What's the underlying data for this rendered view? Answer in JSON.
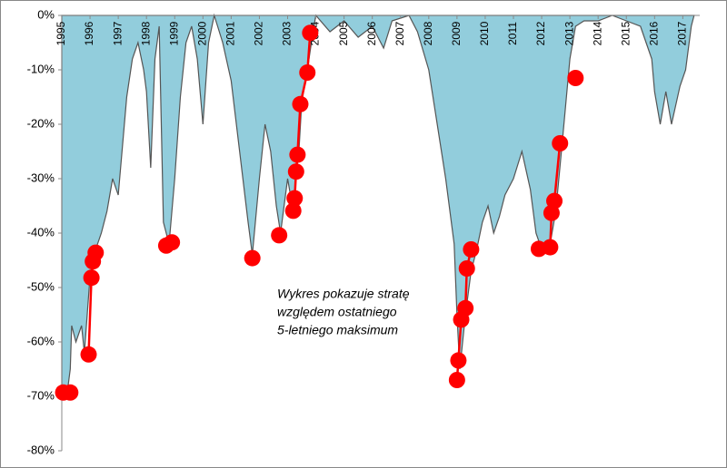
{
  "chart_data": {
    "type": "area",
    "annotation": [
      "Wykres pokazuje stratę",
      "względem ostatniego",
      "5-letniego maksimum"
    ],
    "xlim": [
      1995,
      2017.6
    ],
    "xticks": [
      1995,
      1996,
      1997,
      1998,
      1999,
      2000,
      2001,
      2002,
      2003,
      2004,
      2005,
      2006,
      2007,
      2008,
      2009,
      2010,
      2011,
      2012,
      2013,
      2014,
      2015,
      2016,
      2017
    ],
    "ylim": [
      -80,
      0
    ],
    "yticks": [
      {
        "value": 0,
        "label": "0%"
      },
      {
        "value": -10,
        "label": "-10%"
      },
      {
        "value": -20,
        "label": "-20%"
      },
      {
        "value": -30,
        "label": "-30%"
      },
      {
        "value": -40,
        "label": "-40%"
      },
      {
        "value": -50,
        "label": "-50%"
      },
      {
        "value": -60,
        "label": "-60%"
      },
      {
        "value": -70,
        "label": "-70%"
      },
      {
        "value": -80,
        "label": "-80%"
      }
    ],
    "series": [
      {
        "color": "#92cddc",
        "x": [
          1995.0,
          1995.2,
          1995.3,
          1995.35,
          1995.5,
          1995.7,
          1995.8,
          1996.0,
          1996.1,
          1996.2,
          1996.4,
          1996.6,
          1996.8,
          1997.0,
          1997.1,
          1997.3,
          1997.5,
          1997.7,
          1997.9,
          1998.0,
          1998.15,
          1998.3,
          1998.45,
          1998.6,
          1998.8,
          1999.0,
          1999.2,
          1999.4,
          1999.6,
          1999.8,
          2000.0,
          2000.2,
          2000.4,
          2000.7,
          2001.0,
          2001.3,
          2001.6,
          2001.75,
          2002.0,
          2002.2,
          2002.4,
          2002.6,
          2002.75,
          2003.0,
          2003.2,
          2003.3,
          2003.4,
          2003.5,
          2003.7,
          2003.9,
          2004.0,
          2004.5,
          2005.0,
          2005.5,
          2006.0,
          2006.4,
          2006.7,
          2007.3,
          2007.6,
          2008.0,
          2008.3,
          2008.6,
          2008.9,
          2009.0,
          2009.1,
          2009.2,
          2009.3,
          2009.5,
          2009.7,
          2009.9,
          2010.1,
          2010.3,
          2010.5,
          2010.7,
          2011.0,
          2011.3,
          2011.6,
          2011.8,
          2012.0,
          2012.3,
          2012.5,
          2012.7,
          2013.0,
          2013.2,
          2013.5,
          2014.0,
          2014.5,
          2015.0,
          2015.5,
          2015.9,
          2016.0,
          2016.2,
          2016.4,
          2016.6,
          2016.9,
          2017.1,
          2017.3,
          2017.4
        ],
        "values": [
          -69,
          -69,
          -65,
          -57,
          -60,
          -57,
          -62,
          -48,
          -45,
          -43,
          -40,
          -36,
          -30,
          -33,
          -27,
          -15,
          -8,
          -5,
          -10,
          -14,
          -28,
          -8,
          -2,
          -38,
          -42,
          -30,
          -15,
          -5,
          -2,
          -8,
          -20,
          -5,
          0,
          -5,
          -12,
          -25,
          -38,
          -44,
          -30,
          -20,
          -25,
          -35,
          -40,
          -30,
          -36,
          -29,
          -25,
          -16,
          -10,
          -3,
          0,
          -3,
          -1,
          -4,
          -2,
          -6,
          -1,
          0,
          -3,
          -10,
          -20,
          -30,
          -42,
          -55,
          -65,
          -60,
          -55,
          -47,
          -43,
          -38,
          -35,
          -40,
          -37,
          -33,
          -30,
          -25,
          -32,
          -40,
          -43,
          -42,
          -36,
          -25,
          -8,
          -2,
          -1,
          -1,
          0,
          -1,
          -2,
          -8,
          -14,
          -20,
          -14,
          -20,
          -13,
          -10,
          -2,
          0
        ]
      }
    ],
    "markers": {
      "color": "#ff0000",
      "segments": [
        {
          "x": [
            1995.05,
            1995.3
          ],
          "values": [
            -69.3,
            -69.3
          ]
        },
        {
          "x": [
            1995.95,
            1996.05,
            1996.1,
            1996.2
          ],
          "values": [
            -62.3,
            -48.2,
            -45.2,
            -43.6
          ]
        },
        {
          "x": [
            1998.7,
            1998.9
          ],
          "values": [
            -42.3,
            -41.7
          ]
        },
        {
          "x": [
            2001.75
          ],
          "values": [
            -44.6
          ]
        },
        {
          "x": [
            2002.7
          ],
          "values": [
            -40.4
          ]
        },
        {
          "x": [
            2003.2,
            2003.25,
            2003.3,
            2003.35,
            2003.45,
            2003.7,
            2003.8
          ],
          "values": [
            -35.9,
            -33.6,
            -28.7,
            -25.6,
            -16.3,
            -10.5,
            -3.2
          ]
        },
        {
          "x": [
            2009.0,
            2009.05,
            2009.15,
            2009.3,
            2009.35,
            2009.5
          ],
          "values": [
            -67,
            -63.4,
            -55.9,
            -53.8,
            -46.5,
            -43
          ]
        },
        {
          "x": [
            2011.9,
            2012.3,
            2012.35,
            2012.45,
            2012.65
          ],
          "values": [
            -42.9,
            -42.6,
            -36.3,
            -34.1,
            -23.5
          ]
        },
        {
          "x": [
            2013.2
          ],
          "values": [
            -11.5
          ]
        }
      ]
    }
  }
}
